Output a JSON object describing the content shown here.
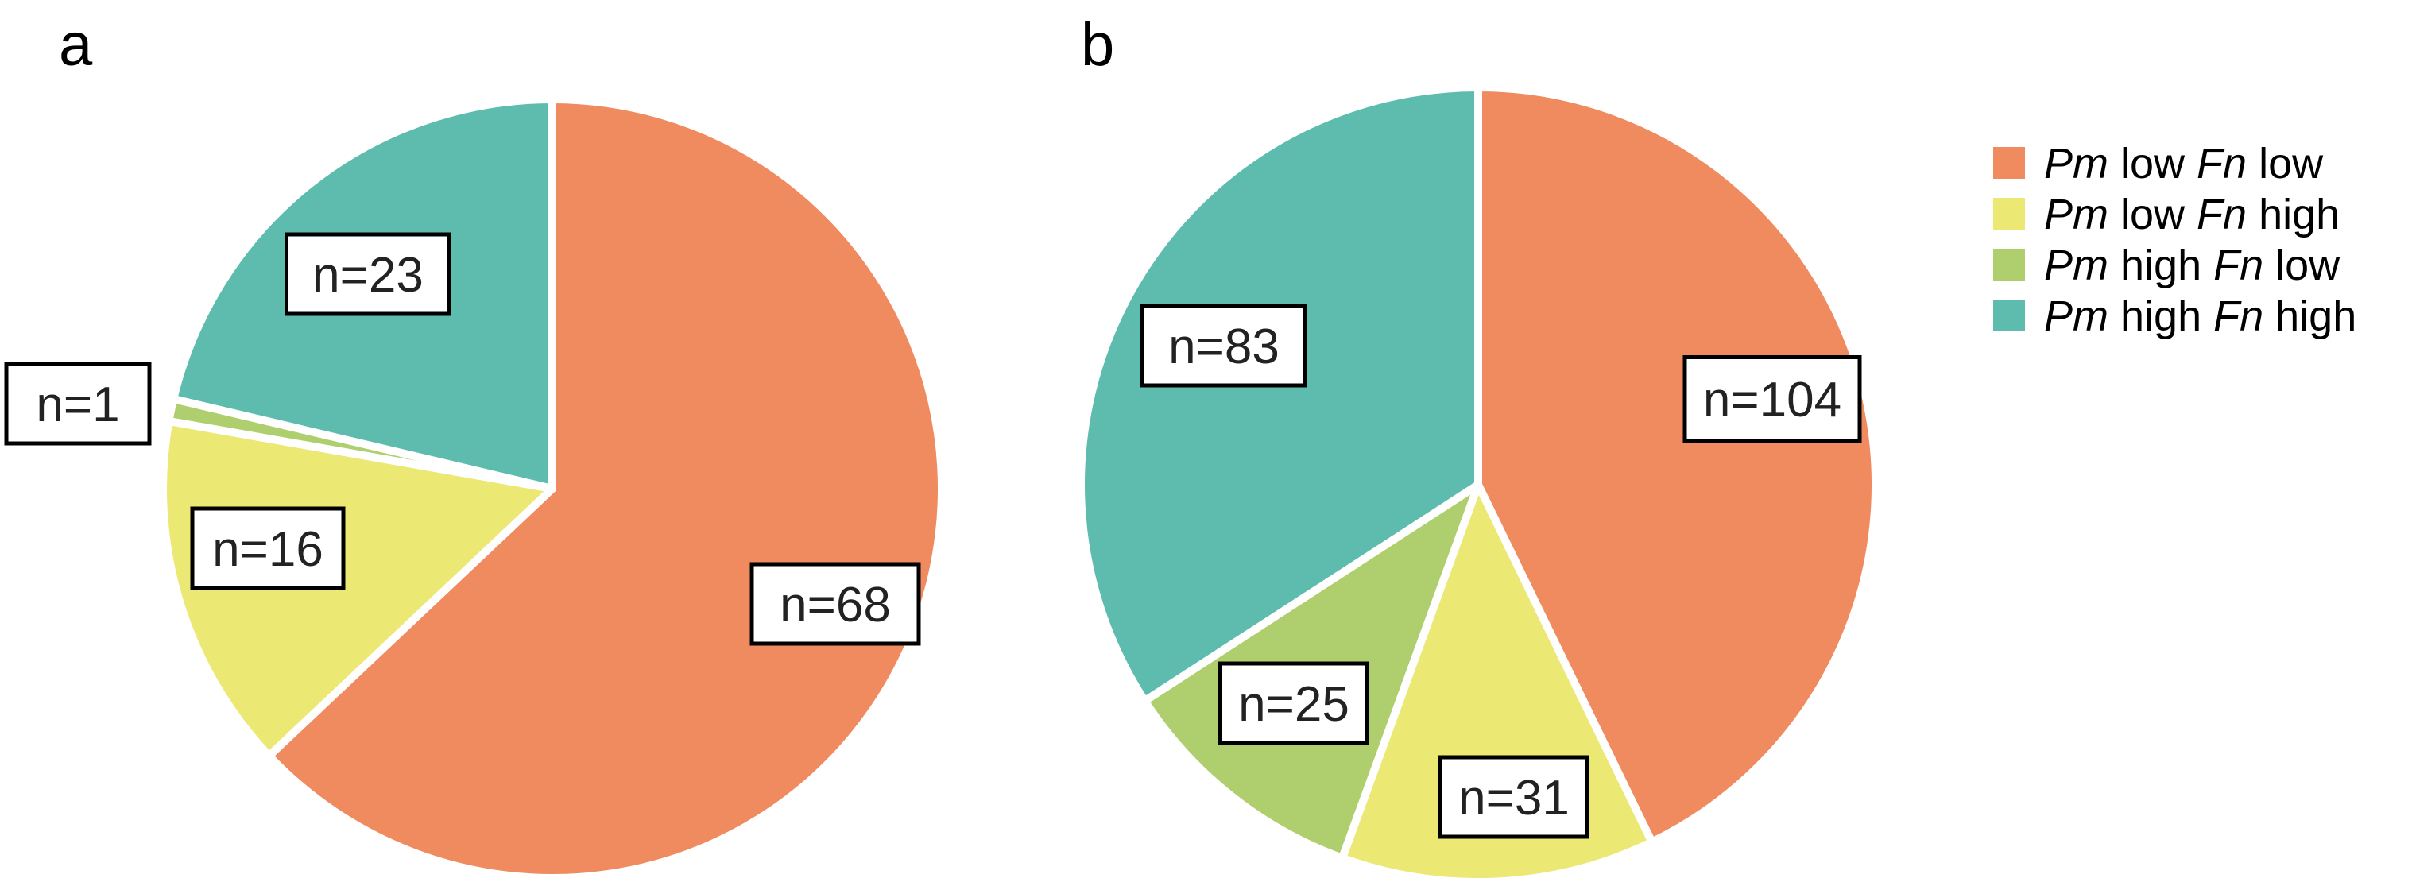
{
  "chart_data": [
    {
      "type": "pie",
      "panel": "a",
      "slices": [
        {
          "label": "Pm low Fn low",
          "value": 68,
          "text": "n=68",
          "color": "#F08A5F"
        },
        {
          "label": "Pm low Fn high",
          "value": 16,
          "text": "n=16",
          "color": "#ECE874"
        },
        {
          "label": "Pm high Fn low",
          "value": 1,
          "text": "n=1",
          "color": "#AFCF6E"
        },
        {
          "label": "Pm high Fn high",
          "value": 23,
          "text": "n=23",
          "color": "#5EBCAF"
        }
      ]
    },
    {
      "type": "pie",
      "panel": "b",
      "slices": [
        {
          "label": "Pm low Fn low",
          "value": 104,
          "text": "n=104",
          "color": "#F08A5F"
        },
        {
          "label": "Pm low Fn high",
          "value": 31,
          "text": "n=31",
          "color": "#ECE874"
        },
        {
          "label": "Pm high Fn low",
          "value": 25,
          "text": "n=25",
          "color": "#AFCF6E"
        },
        {
          "label": "Pm high Fn high",
          "value": 83,
          "text": "n=83",
          "color": "#5EBCAF"
        }
      ]
    }
  ],
  "legend": {
    "placement": "right",
    "items": [
      {
        "parts": [
          {
            "text": "Pm",
            "italic": true
          },
          {
            "text": " low ",
            "italic": false
          },
          {
            "text": "Fn",
            "italic": true
          },
          {
            "text": " low",
            "italic": false
          }
        ],
        "color": "#F08A5F"
      },
      {
        "parts": [
          {
            "text": "Pm",
            "italic": true
          },
          {
            "text": " low ",
            "italic": false
          },
          {
            "text": "Fn",
            "italic": true
          },
          {
            "text": " high",
            "italic": false
          }
        ],
        "color": "#ECE874"
      },
      {
        "parts": [
          {
            "text": "Pm",
            "italic": true
          },
          {
            "text": " high ",
            "italic": false
          },
          {
            "text": "Fn",
            "italic": true
          },
          {
            "text": " low",
            "italic": false
          }
        ],
        "color": "#AFCF6E"
      },
      {
        "parts": [
          {
            "text": "Pm",
            "italic": true
          },
          {
            "text": " high ",
            "italic": false
          },
          {
            "text": "Fn",
            "italic": true
          },
          {
            "text": " high",
            "italic": false
          }
        ],
        "color": "#5EBCAF"
      }
    ]
  }
}
